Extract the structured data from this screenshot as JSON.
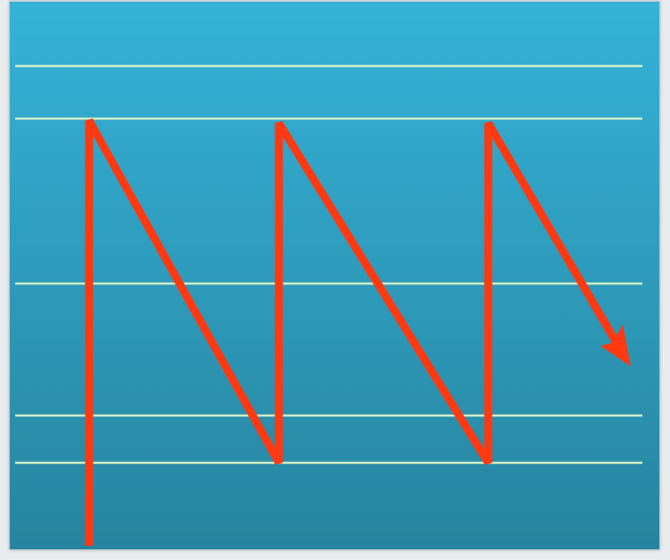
{
  "diagram": {
    "background_top": "#35b2d8",
    "background_bottom": "#27849f",
    "rule_color": "#cfeec7",
    "stroke_color": "#ff3a12",
    "staff_rules": 5,
    "zigzag_peaks": 3,
    "ends_with_arrowhead": true
  }
}
